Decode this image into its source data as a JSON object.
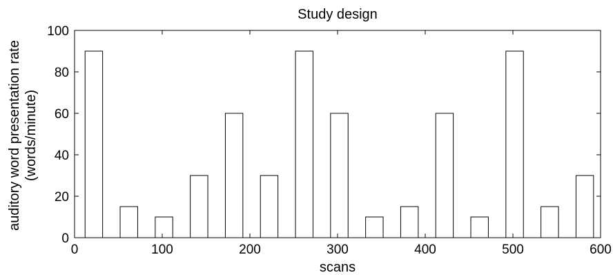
{
  "chart_data": {
    "type": "bar",
    "title": "Study design",
    "xlabel": "scans",
    "ylabel": [
      "auditory word presentation rate",
      "(words/minute)"
    ],
    "xlim": [
      0,
      600
    ],
    "ylim": [
      0,
      100
    ],
    "xticks": [
      0,
      100,
      200,
      300,
      400,
      500,
      600
    ],
    "yticks": [
      0,
      20,
      40,
      60,
      80,
      100
    ],
    "grid": false,
    "bar_style": "outline",
    "bars": [
      {
        "x_start": 12,
        "x_end": 32,
        "value": 90
      },
      {
        "x_start": 52,
        "x_end": 72,
        "value": 15
      },
      {
        "x_start": 92,
        "x_end": 112,
        "value": 10
      },
      {
        "x_start": 132,
        "x_end": 152,
        "value": 30
      },
      {
        "x_start": 172,
        "x_end": 192,
        "value": 60
      },
      {
        "x_start": 212,
        "x_end": 232,
        "value": 30
      },
      {
        "x_start": 252,
        "x_end": 272,
        "value": 90
      },
      {
        "x_start": 292,
        "x_end": 312,
        "value": 60
      },
      {
        "x_start": 332,
        "x_end": 352,
        "value": 10
      },
      {
        "x_start": 372,
        "x_end": 392,
        "value": 15
      },
      {
        "x_start": 412,
        "x_end": 432,
        "value": 60
      },
      {
        "x_start": 452,
        "x_end": 472,
        "value": 10
      },
      {
        "x_start": 492,
        "x_end": 512,
        "value": 90
      },
      {
        "x_start": 532,
        "x_end": 552,
        "value": 15
      },
      {
        "x_start": 572,
        "x_end": 592,
        "value": 30
      }
    ]
  }
}
